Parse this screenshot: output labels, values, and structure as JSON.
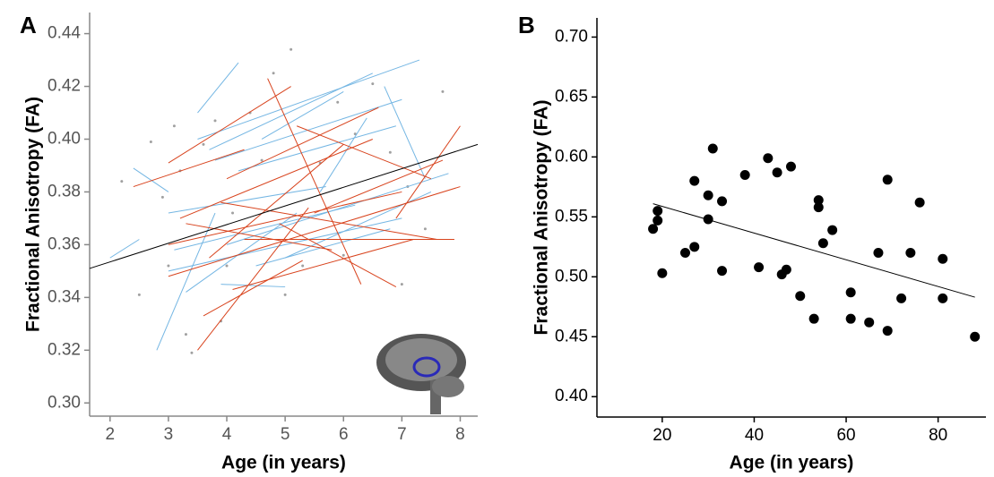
{
  "chart_data": [
    {
      "type": "line",
      "panel_label": "A",
      "x_label": "Age (in years)",
      "y_label": "Fractional Anisotropy (FA)",
      "xlim": [
        1.65,
        8.3
      ],
      "ylim": [
        0.295,
        0.448
      ],
      "xticks": [
        2,
        3,
        4,
        5,
        6,
        7,
        8
      ],
      "yticks": [
        {
          "value": 0.3,
          "label": "0.30"
        },
        0.32,
        0.34,
        0.36,
        0.38,
        {
          "value": 0.4,
          "label": "0.40"
        },
        0.42,
        0.44
      ],
      "points": {
        "color": "#a0a0a0",
        "x": [
          2.2,
          2.5,
          2.7,
          2.9,
          3.0,
          3.1,
          3.3,
          3.4,
          3.6,
          3.8,
          3.9,
          4.1,
          4.4,
          4.6,
          4.8,
          5.1,
          5.3,
          5.6,
          5.9,
          6.2,
          6.5,
          6.8,
          7.1,
          7.4,
          7.7,
          3.2,
          4.0,
          5.0,
          6.0,
          7.0
        ],
        "values": [
          0.384,
          0.341,
          0.399,
          0.378,
          0.352,
          0.405,
          0.326,
          0.319,
          0.398,
          0.407,
          0.331,
          0.372,
          0.41,
          0.392,
          0.425,
          0.434,
          0.352,
          0.391,
          0.414,
          0.402,
          0.421,
          0.395,
          0.382,
          0.366,
          0.418,
          0.388,
          0.352,
          0.341,
          0.356,
          0.345
        ]
      },
      "series": [
        {
          "color": "#74b6e3",
          "x": [
            2.4,
            3.0
          ],
          "values": [
            0.389,
            0.38
          ]
        },
        {
          "color": "#74b6e3",
          "x": [
            3.5,
            4.2
          ],
          "values": [
            0.41,
            0.429
          ]
        },
        {
          "color": "#74b6e3",
          "x": [
            3.5,
            7.3
          ],
          "values": [
            0.4,
            0.43
          ]
        },
        {
          "color": "#74b6e3",
          "x": [
            3.7,
            6.5
          ],
          "values": [
            0.396,
            0.425
          ]
        },
        {
          "color": "#74b6e3",
          "x": [
            2.8,
            3.8
          ],
          "values": [
            0.32,
            0.372
          ]
        },
        {
          "color": "#74b6e3",
          "x": [
            3.0,
            7.0
          ],
          "values": [
            0.35,
            0.37
          ]
        },
        {
          "color": "#74b6e3",
          "x": [
            4.0,
            7.8
          ],
          "values": [
            0.36,
            0.387
          ]
        },
        {
          "color": "#74b6e3",
          "x": [
            3.3,
            5.2
          ],
          "values": [
            0.342,
            0.372
          ]
        },
        {
          "color": "#74b6e3",
          "x": [
            4.6,
            6.0
          ],
          "values": [
            0.4,
            0.418
          ]
        },
        {
          "color": "#74b6e3",
          "x": [
            6.7,
            7.4
          ],
          "values": [
            0.42,
            0.385
          ]
        },
        {
          "color": "#74b6e3",
          "x": [
            5.0,
            7.5
          ],
          "values": [
            0.355,
            0.38
          ]
        },
        {
          "color": "#74b6e3",
          "x": [
            3.9,
            5.0
          ],
          "values": [
            0.345,
            0.344
          ]
        },
        {
          "color": "#74b6e3",
          "x": [
            5.6,
            6.4
          ],
          "values": [
            0.38,
            0.408
          ]
        },
        {
          "color": "#74b6e3",
          "x": [
            2.0,
            2.5
          ],
          "values": [
            0.355,
            0.362
          ]
        },
        {
          "color": "#74b6e3",
          "x": [
            3.0,
            5.7
          ],
          "values": [
            0.372,
            0.382
          ]
        },
        {
          "color": "#74b6e3",
          "x": [
            4.2,
            6.9
          ],
          "values": [
            0.388,
            0.405
          ]
        },
        {
          "color": "#74b6e3",
          "x": [
            3.1,
            6.2
          ],
          "values": [
            0.358,
            0.375
          ]
        },
        {
          "color": "#74b6e3",
          "x": [
            3.8,
            7.0
          ],
          "values": [
            0.392,
            0.415
          ]
        },
        {
          "color": "#74b6e3",
          "x": [
            4.5,
            6.8
          ],
          "values": [
            0.352,
            0.366
          ]
        },
        {
          "color": "#d8431d",
          "x": [
            3.0,
            5.1
          ],
          "values": [
            0.391,
            0.42
          ]
        },
        {
          "color": "#d8431d",
          "x": [
            2.4,
            4.3
          ],
          "values": [
            0.382,
            0.396
          ]
        },
        {
          "color": "#d8431d",
          "x": [
            3.0,
            7.0
          ],
          "values": [
            0.36,
            0.38
          ]
        },
        {
          "color": "#d8431d",
          "x": [
            3.2,
            6.5
          ],
          "values": [
            0.37,
            0.4
          ]
        },
        {
          "color": "#d8431d",
          "x": [
            4.7,
            6.3
          ],
          "values": [
            0.423,
            0.345
          ]
        },
        {
          "color": "#d8431d",
          "x": [
            3.5,
            5.4
          ],
          "values": [
            0.32,
            0.374
          ]
        },
        {
          "color": "#d8431d",
          "x": [
            3.0,
            8.0
          ],
          "values": [
            0.348,
            0.382
          ]
        },
        {
          "color": "#d8431d",
          "x": [
            4.1,
            7.2
          ],
          "values": [
            0.343,
            0.362
          ]
        },
        {
          "color": "#d8431d",
          "x": [
            5.2,
            7.5
          ],
          "values": [
            0.405,
            0.385
          ]
        },
        {
          "color": "#d8431d",
          "x": [
            3.9,
            7.6
          ],
          "values": [
            0.376,
            0.362
          ]
        },
        {
          "color": "#d8431d",
          "x": [
            3.7,
            6.0
          ],
          "values": [
            0.355,
            0.398
          ]
        },
        {
          "color": "#d8431d",
          "x": [
            4.9,
            6.9
          ],
          "values": [
            0.368,
            0.344
          ]
        },
        {
          "color": "#d8431d",
          "x": [
            6.9,
            8.0
          ],
          "values": [
            0.37,
            0.405
          ]
        },
        {
          "color": "#d8431d",
          "x": [
            3.3,
            5.8
          ],
          "values": [
            0.368,
            0.358
          ]
        },
        {
          "color": "#d8431d",
          "x": [
            4.0,
            6.6
          ],
          "values": [
            0.385,
            0.412
          ]
        },
        {
          "color": "#d8431d",
          "x": [
            5.5,
            7.7
          ],
          "values": [
            0.372,
            0.392
          ]
        },
        {
          "color": "#d8431d",
          "x": [
            3.6,
            5.3
          ],
          "values": [
            0.333,
            0.354
          ]
        },
        {
          "color": "#d8431d",
          "x": [
            4.3,
            7.9
          ],
          "values": [
            0.362,
            0.362
          ]
        }
      ],
      "trend": {
        "color": "#000000",
        "x": [
          1.65,
          8.3
        ],
        "values": [
          0.351,
          0.398
        ]
      }
    },
    {
      "type": "scatter",
      "panel_label": "B",
      "x_label": "Age (in years)",
      "y_label": "Fractional Anisotropy (FA)",
      "xlim": [
        5.8,
        90.4
      ],
      "ylim": [
        0.383,
        0.716
      ],
      "xticks": [
        20,
        40,
        60,
        80
      ],
      "yticks": [
        {
          "value": 0.4,
          "label": "0.40"
        },
        0.45,
        {
          "value": 0.5,
          "label": "0.50"
        },
        0.55,
        {
          "value": 0.6,
          "label": "0.60"
        },
        0.65,
        {
          "value": 0.7,
          "label": "0.70"
        }
      ],
      "color": "#000000",
      "x": [
        18,
        19,
        19,
        20,
        25,
        27,
        27,
        30,
        30,
        31,
        33,
        33,
        38,
        41,
        43,
        45,
        46,
        47,
        48,
        50,
        53,
        54,
        54,
        55,
        57,
        61,
        61,
        65,
        67,
        69,
        69,
        72,
        74,
        76,
        81,
        81,
        88
      ],
      "values": [
        0.54,
        0.547,
        0.555,
        0.503,
        0.52,
        0.525,
        0.58,
        0.568,
        0.548,
        0.607,
        0.563,
        0.505,
        0.585,
        0.508,
        0.599,
        0.587,
        0.502,
        0.506,
        0.592,
        0.484,
        0.465,
        0.564,
        0.558,
        0.528,
        0.539,
        0.487,
        0.465,
        0.462,
        0.52,
        0.581,
        0.455,
        0.482,
        0.52,
        0.562,
        0.515,
        0.482,
        0.45
      ],
      "trend": {
        "color": "#000000",
        "x": [
          18,
          88
        ],
        "values": [
          0.561,
          0.483
        ]
      }
    }
  ]
}
